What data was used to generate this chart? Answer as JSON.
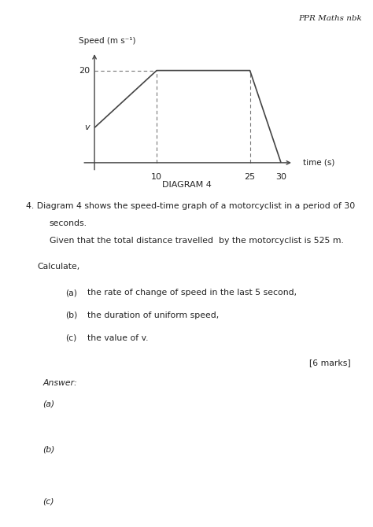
{
  "header_text": "PPR Maths nbk",
  "diagram_label": "DIAGRAM 4",
  "graph_title": "Speed (m s⁻¹)",
  "x_label": "time (s)",
  "x_ticks": [
    10,
    25,
    30
  ],
  "y_label_20": "20",
  "y_label_v": "v",
  "v_val": 7.6,
  "speed_max": 20,
  "question_number": "4.",
  "question_text_line1": "Diagram 4 shows the speed-time graph of a motorcyclist in a period of 30",
  "question_text_line2": "seconds.",
  "question_text_line3": "Given that the total distance travelled  by the motorcyclist is 525 m.",
  "calculate_label": "Calculate,",
  "sub_a_label": "(a)",
  "sub_a_text": "the rate of change of speed in the last 5 second,",
  "sub_b_label": "(b)",
  "sub_b_text": "the duration of uniform speed,",
  "sub_c_label": "(c)",
  "sub_c_text": "the value of v.",
  "marks_text": "[6 marks]",
  "answer_label": "Answer:",
  "ans_a": "(a)",
  "ans_b": "(b)",
  "ans_c": "(c)",
  "bg_color": "#ffffff",
  "line_color": "#444444",
  "text_color": "#222222",
  "dashed_color": "#777777"
}
